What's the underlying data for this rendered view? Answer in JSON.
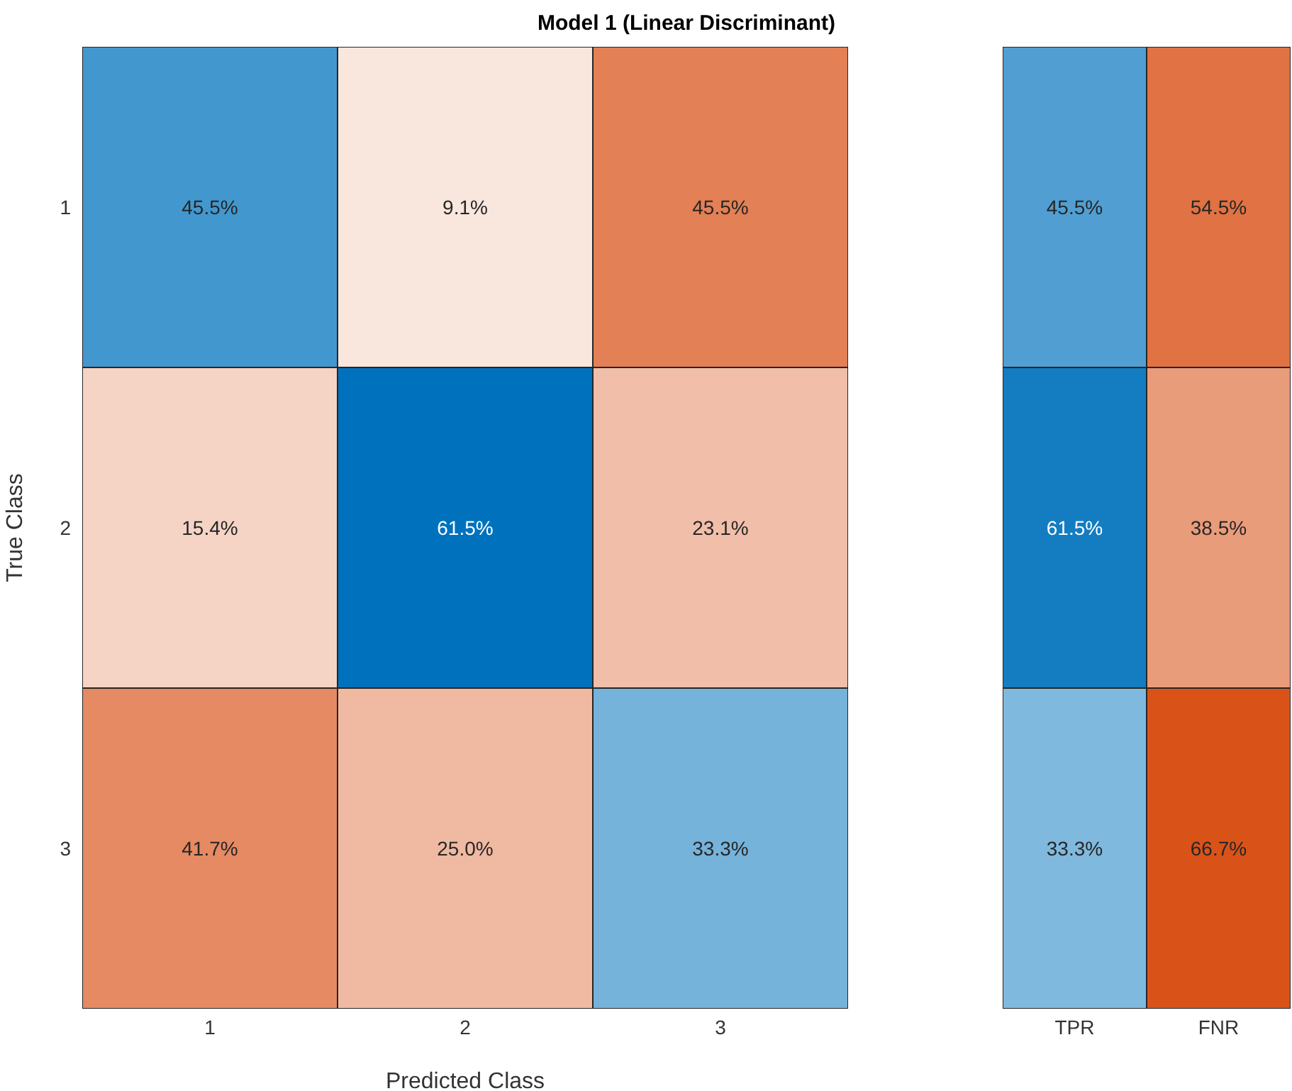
{
  "chart_data": [
    {
      "type": "heatmap",
      "title": "Model 1 (Linear Discriminant)",
      "xlabel": "Predicted Class",
      "ylabel": "True Class",
      "categories": [
        "1",
        "2",
        "3"
      ],
      "y_categories": [
        "1",
        "2",
        "3"
      ],
      "cells": [
        [
          45.5,
          9.1,
          45.5
        ],
        [
          15.4,
          61.5,
          23.1
        ],
        [
          41.7,
          25.0,
          33.3
        ]
      ],
      "cell_labels": [
        [
          "45.5%",
          "9.1%",
          "45.5%"
        ],
        [
          "15.4%",
          "61.5%",
          "23.1%"
        ],
        [
          "41.7%",
          "25.0%",
          "33.3%"
        ]
      ],
      "colors": [
        [
          "#0072bd",
          "#d95319",
          "#d95319"
        ],
        [
          "#d95319",
          "#0072bd",
          "#d95319"
        ],
        [
          "#d95319",
          "#d95319",
          "#0072bd"
        ]
      ]
    },
    {
      "type": "heatmap",
      "categories": [
        "TPR",
        "FNR"
      ],
      "y_categories": [
        "1",
        "2",
        "3"
      ],
      "tick_labels": "x",
      "cells": [
        [
          45.5,
          54.5
        ],
        [
          61.5,
          38.5
        ],
        [
          33.3,
          66.7
        ]
      ],
      "cell_labels": [
        [
          "45.5%",
          "54.5%"
        ],
        [
          "61.5%",
          "38.5%"
        ],
        [
          "33.3%",
          "66.7%"
        ]
      ],
      "colors": [
        [
          "#0072bd",
          "#d95319"
        ],
        [
          "#0072bd",
          "#d95319"
        ],
        [
          "#0072bd",
          "#d95319"
        ]
      ]
    }
  ]
}
